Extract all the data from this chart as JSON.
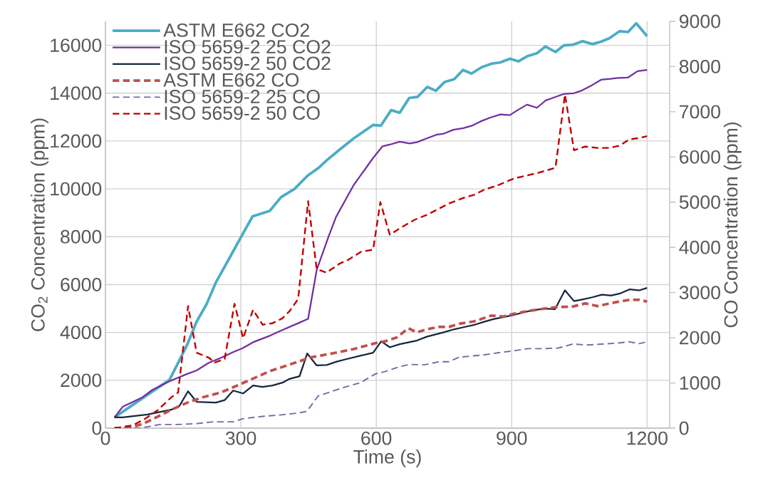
{
  "chart_data": {
    "type": "line",
    "xlabel": "Time (s)",
    "ylabel": "CO$_{2}$ Concentration (ppm)",
    "y2label": "CO Concentration (ppm)",
    "xlim": [
      0,
      1250
    ],
    "xticks": [
      0,
      300,
      600,
      900,
      1200
    ],
    "ylim": [
      0,
      17000
    ],
    "yticks": [
      0,
      2000,
      4000,
      6000,
      8000,
      10000,
      12000,
      14000,
      16000
    ],
    "y2lim": [
      0,
      9000
    ],
    "y2ticks": [
      0,
      1000,
      2000,
      3000,
      4000,
      5000,
      6000,
      7000,
      8000,
      9000
    ],
    "grid": true,
    "legend": "top left",
    "series": [
      {
        "name": "ASTM E662 CO2",
        "color": "#4bacc6",
        "line_style": "solid",
        "x": [
          20,
          142,
          180,
          202,
          224,
          245,
          278,
          302,
          326,
          364,
          389,
          419,
          449,
          473,
          490,
          517,
          550,
          593,
          610,
          633,
          652,
          673,
          692,
          713,
          732,
          751,
          773,
          792,
          811,
          833,
          855,
          874,
          896,
          915,
          934,
          956,
          975,
          997,
          1016,
          1035,
          1057,
          1079,
          1098,
          1117,
          1139,
          1158,
          1176,
          1200
        ],
        "values": [
          450,
          2020,
          3440,
          4450,
          5180,
          6100,
          7220,
          8040,
          8850,
          9080,
          9650,
          10000,
          10570,
          10890,
          11190,
          11610,
          12110,
          12670,
          12640,
          13290,
          13180,
          13800,
          13850,
          14260,
          14100,
          14460,
          14590,
          14970,
          14820,
          15080,
          15230,
          15280,
          15440,
          15330,
          15540,
          15670,
          15950,
          15720,
          16000,
          16020,
          16170,
          16050,
          16150,
          16300,
          16590,
          16560,
          16920,
          16380
        ]
      },
      {
        "name": "ISO 5659-2 25 CO2",
        "color": "#7030a0",
        "line_style": "solid",
        "x": [
          20,
          38,
          82,
          104,
          142,
          180,
          202,
          229,
          256,
          283,
          304,
          327,
          364,
          392,
          430,
          449,
          468,
          495,
          511,
          550,
          593,
          614,
          630,
          652,
          674,
          690,
          712,
          733,
          750,
          771,
          793,
          812,
          831,
          853,
          875,
          896,
          913,
          934,
          956,
          975,
          994,
          1016,
          1038,
          1054,
          1076,
          1098,
          1119,
          1136,
          1157,
          1179,
          1200
        ],
        "values": [
          450,
          890,
          1290,
          1600,
          1960,
          2260,
          2410,
          2730,
          2940,
          3180,
          3340,
          3590,
          3860,
          4100,
          4410,
          4570,
          6610,
          8040,
          8830,
          10160,
          11290,
          11780,
          11850,
          11970,
          11900,
          11950,
          12110,
          12260,
          12310,
          12470,
          12540,
          12640,
          12820,
          12980,
          13110,
          13080,
          13290,
          13520,
          13390,
          13690,
          13820,
          13970,
          14000,
          14100,
          14310,
          14560,
          14600,
          14640,
          14650,
          14920,
          14970
        ]
      },
      {
        "name": "ISO 5659-2 50 CO2",
        "color": "#17263f",
        "line_style": "solid",
        "x": [
          20,
          38,
          93,
          147,
          164,
          183,
          202,
          245,
          264,
          283,
          305,
          327,
          348,
          370,
          392,
          408,
          430,
          447,
          468,
          490,
          511,
          533,
          566,
          593,
          611,
          630,
          652,
          690,
          712,
          750,
          772,
          794,
          816,
          838,
          860,
          882,
          904,
          925,
          947,
          975,
          996,
          1018,
          1038,
          1057,
          1079,
          1100,
          1120,
          1139,
          1161,
          1183,
          1200
        ],
        "values": [
          450,
          450,
          570,
          780,
          930,
          1540,
          1100,
          1070,
          1170,
          1570,
          1450,
          1780,
          1720,
          1780,
          1900,
          2060,
          2170,
          3120,
          2620,
          2640,
          2770,
          2880,
          3030,
          3150,
          3630,
          3380,
          3510,
          3660,
          3820,
          4010,
          4130,
          4220,
          4310,
          4440,
          4560,
          4640,
          4730,
          4830,
          4930,
          5000,
          4970,
          5760,
          5310,
          5380,
          5470,
          5580,
          5540,
          5620,
          5800,
          5760,
          5860
        ]
      },
      {
        "name": "ASTM E662 CO",
        "color": "#c0504d",
        "line_style": "dashed",
        "axis": "y2",
        "x": [
          20,
          49,
          82,
          115,
          147,
          185,
          218,
          256,
          289,
          321,
          364,
          397,
          430,
          452,
          479,
          511,
          550,
          598,
          619,
          646,
          671,
          690,
          713,
          739,
          761,
          784,
          816,
          855,
          882,
          904,
          936,
          969,
          1003,
          1035,
          1063,
          1090,
          1122,
          1161,
          1183,
          1200
        ],
        "values": [
          0,
          0,
          90,
          250,
          410,
          580,
          690,
          790,
          930,
          1070,
          1260,
          1370,
          1480,
          1560,
          1610,
          1670,
          1750,
          1880,
          1920,
          2010,
          2210,
          2120,
          2190,
          2240,
          2240,
          2310,
          2360,
          2490,
          2470,
          2530,
          2590,
          2640,
          2680,
          2690,
          2760,
          2700,
          2770,
          2840,
          2840,
          2800
        ]
      },
      {
        "name": "ISO 5659-2 25 CO",
        "color": "#8064a2",
        "line_style": "dashed",
        "axis": "y2",
        "x": [
          40,
          77,
          120,
          158,
          202,
          240,
          283,
          305,
          348,
          386,
          424,
          446,
          471,
          495,
          528,
          566,
          598,
          619,
          652,
          674,
          706,
          739,
          761,
          784,
          816,
          838,
          872,
          904,
          936,
          969,
          1003,
          1035,
          1068,
          1100,
          1133,
          1161,
          1183,
          1200
        ],
        "values": [
          0,
          0,
          80,
          80,
          100,
          140,
          140,
          210,
          260,
          290,
          330,
          370,
          710,
          790,
          900,
          1010,
          1200,
          1250,
          1360,
          1410,
          1400,
          1470,
          1470,
          1570,
          1600,
          1620,
          1670,
          1710,
          1760,
          1760,
          1770,
          1860,
          1840,
          1860,
          1880,
          1910,
          1870,
          1910
        ]
      },
      {
        "name": "ISO 5659-2 50 CO",
        "color": "#c00000",
        "line_style": "dashed",
        "axis": "y2",
        "x": [
          20,
          60,
          87,
          115,
          147,
          161,
          183,
          202,
          229,
          242,
          264,
          286,
          305,
          327,
          348,
          370,
          392,
          408,
          427,
          449,
          468,
          490,
          517,
          539,
          566,
          593,
          609,
          630,
          657,
          685,
          712,
          734,
          761,
          795,
          816,
          838,
          871,
          904,
          925,
          959,
          997,
          1018,
          1038,
          1063,
          1090,
          1117,
          1139,
          1161,
          1183,
          1200
        ],
        "values": [
          0,
          60,
          200,
          390,
          690,
          790,
          2700,
          1670,
          1560,
          1450,
          1530,
          2750,
          1990,
          2620,
          2290,
          2320,
          2430,
          2590,
          2860,
          5020,
          3520,
          3440,
          3630,
          3730,
          3900,
          3950,
          5000,
          4280,
          4450,
          4610,
          4720,
          4830,
          4970,
          5100,
          5160,
          5270,
          5380,
          5520,
          5570,
          5650,
          5760,
          7380,
          6150,
          6230,
          6200,
          6200,
          6250,
          6390,
          6420,
          6460
        ]
      }
    ]
  }
}
